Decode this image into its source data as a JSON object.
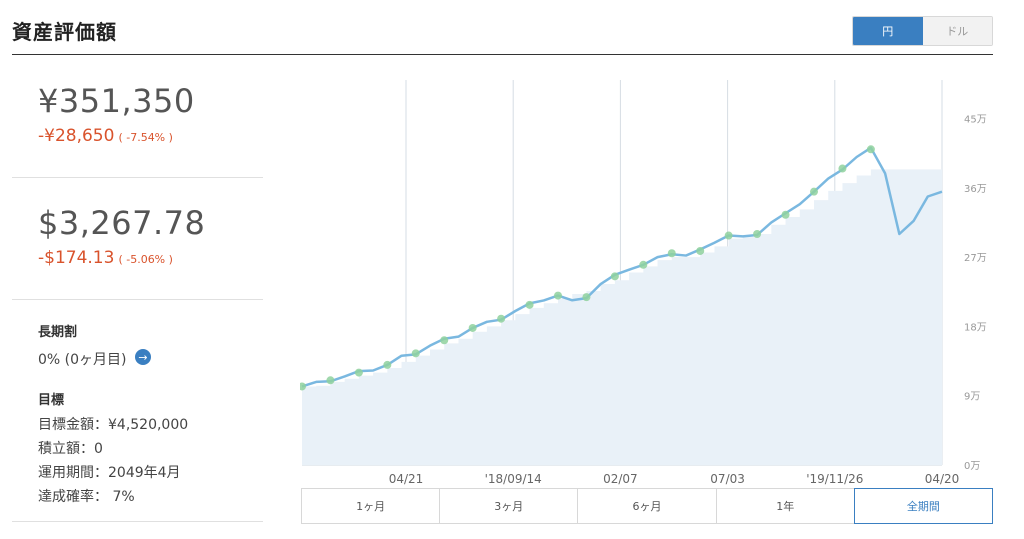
{
  "header": {
    "title": "資産評価額"
  },
  "currency_toggle": {
    "options": [
      {
        "label": "円",
        "active": true
      },
      {
        "label": "ドル",
        "active": false
      }
    ]
  },
  "yen_value": {
    "amount": "¥351,350",
    "change": "-¥28,650",
    "change_pct": "( -7.54% )"
  },
  "usd_value": {
    "amount": "$3,267.78",
    "change": "-$174.13",
    "change_pct": "( -5.06% )"
  },
  "long_term": {
    "label": "長期割",
    "value": "0% (0ヶ月目)"
  },
  "goal": {
    "label": "目標",
    "target_amount": "目標金額：¥4,520,000",
    "contribution": "積立額：0",
    "period": "運用期間：2049年4月",
    "probability": "達成確率： 7%"
  },
  "period_tabs": [
    {
      "label": "1ヶ月",
      "active": false
    },
    {
      "label": "3ヶ月",
      "active": false
    },
    {
      "label": "6ヶ月",
      "active": false
    },
    {
      "label": "1年",
      "active": false
    },
    {
      "label": "全期間",
      "active": true
    }
  ],
  "colors": {
    "accent": "#3a7fc1",
    "negative": "#d9532c",
    "line": "#7ab8e0",
    "area": "#e9f1f8",
    "marker": "#8fd19e"
  },
  "chart_data": {
    "type": "line",
    "x_tick_labels": [
      "04/21",
      "'18/09/14",
      "02/07",
      "07/03",
      "'19/11/26",
      "04/20"
    ],
    "y_tick_labels": [
      "0万",
      "9万",
      "18万",
      "27万",
      "36万",
      "45万"
    ],
    "ylim": [
      0,
      50
    ],
    "grid": true,
    "series": [
      {
        "values": [
          10.2,
          10.6,
          11.0,
          11.5,
          12.0,
          12.4,
          13.0,
          14.0,
          14.5,
          15.5,
          16.2,
          16.8,
          17.8,
          18.4,
          19.0,
          20.0,
          20.8,
          21.5,
          22.0,
          21.2,
          21.8,
          23.5,
          24.5,
          25.5,
          26.0,
          26.8,
          27.5,
          27.2,
          27.8,
          29.0,
          29.8,
          29.5,
          30.0,
          31.5,
          32.5,
          34.0,
          35.5,
          37.0,
          38.5,
          40.0,
          41.0,
          38.0,
          30.0,
          31.5,
          35.0,
          35.5
        ]
      },
      {
        "values": [
          10.2,
          10.3,
          10.8,
          11.2,
          11.6,
          12.0,
          12.6,
          13.4,
          14.2,
          15.0,
          15.8,
          16.4,
          17.3,
          18.0,
          18.8,
          19.6,
          20.4,
          21.0,
          21.6,
          22.2,
          22.6,
          23.5,
          24.0,
          25.0,
          25.8,
          26.6,
          27.0,
          27.0,
          27.6,
          28.4,
          29.4,
          29.6,
          30.0,
          31.2,
          32.2,
          33.2,
          34.4,
          35.6,
          36.6,
          37.6,
          38.4,
          38.4,
          38.4,
          38.4,
          38.4,
          38.4
        ]
      }
    ]
  }
}
